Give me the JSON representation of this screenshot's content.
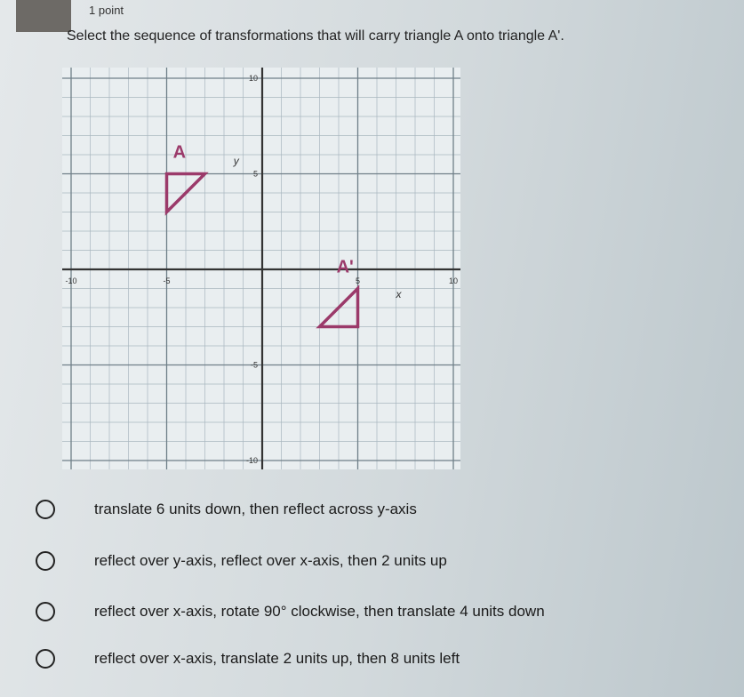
{
  "header": {
    "points": "1 point",
    "question": "Select the sequence of transformations that will carry triangle A onto triangle A'."
  },
  "graph": {
    "xlim": [
      -10,
      10
    ],
    "ylim": [
      -10,
      10
    ],
    "xticks": [
      -10,
      -5,
      5,
      10
    ],
    "yticks": [
      10,
      5,
      -5,
      -10
    ],
    "x_label": "x",
    "y_label": "y",
    "triangles": [
      {
        "label": "A",
        "color": "#9b3a6a",
        "points": [
          [
            -5,
            5
          ],
          [
            -3,
            5
          ],
          [
            -5,
            3
          ]
        ]
      },
      {
        "label": "A'",
        "color": "#9b3a6a",
        "points": [
          [
            3,
            -3
          ],
          [
            5,
            -3
          ],
          [
            5,
            -1
          ]
        ]
      }
    ]
  },
  "options": [
    "translate 6 units down, then reflect across y-axis",
    "reflect over y-axis, reflect over x-axis, then 2 units up",
    "reflect over x-axis, rotate 90° clockwise, then translate 4 units down",
    "reflect over x-axis, translate 2 units up, then 8 units left"
  ]
}
